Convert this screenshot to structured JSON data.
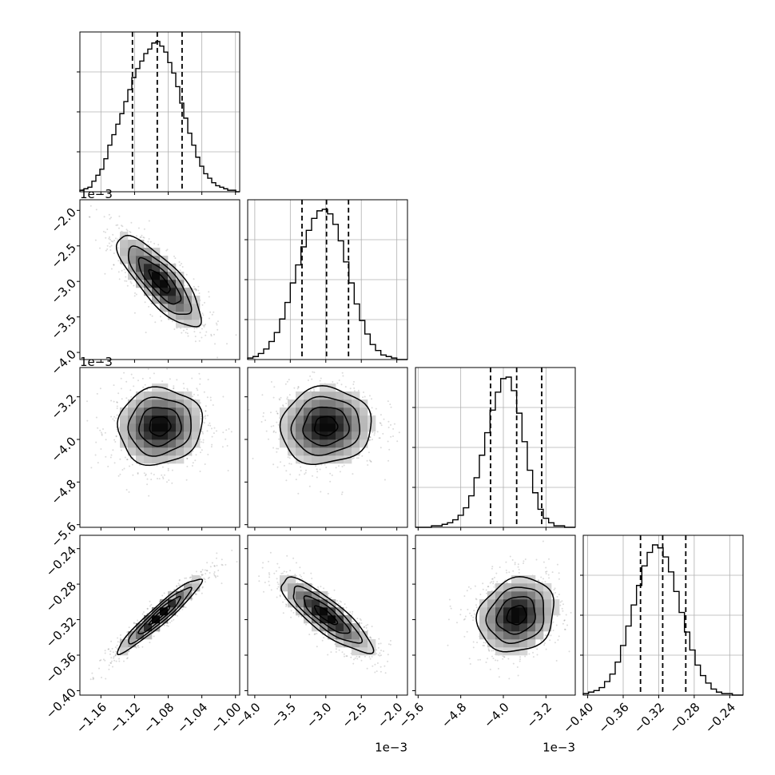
{
  "chart_data": {
    "type": "corner",
    "grid": true,
    "offset_label": "1e−3",
    "params": [
      {
        "range": [
          -1.185,
          -0.995
        ],
        "ticks": [
          -1.16,
          -1.12,
          -1.08,
          -1.04,
          -1.0
        ],
        "tick_labels": [
          "−1.16",
          "−1.12",
          "−1.08",
          "−1.04",
          "−1.00"
        ],
        "quantiles": [
          -1.1225,
          -1.093,
          -1.0635
        ],
        "mean": -1.09,
        "sd": 0.025
      },
      {
        "range": [
          -4.1,
          -1.85
        ],
        "ticks": [
          -4.0,
          -3.5,
          -3.0,
          -2.5,
          -2.0
        ],
        "tick_labels": [
          "−4.0",
          "−3.5",
          "−3.0",
          "−2.5",
          "−2.0"
        ],
        "quantiles": [
          -3.335,
          -2.99,
          -2.68
        ],
        "mean": -3.0,
        "sd": 0.32
      },
      {
        "range": [
          -5.65,
          -2.65
        ],
        "ticks": [
          -5.6,
          -4.8,
          -4.0,
          -3.2
        ],
        "tick_labels": [
          "−5.6",
          "−4.8",
          "−4.0",
          "−3.2"
        ],
        "quantiles": [
          -4.24,
          -3.75,
          -3.28
        ],
        "mean": -3.75,
        "sd": 0.36
      },
      {
        "range": [
          -0.405,
          -0.225
        ],
        "ticks": [
          -0.4,
          -0.36,
          -0.32,
          -0.28,
          -0.24
        ],
        "tick_labels": [
          "−0.40",
          "−0.36",
          "−0.32",
          "−0.28",
          "−0.24"
        ],
        "quantiles": [
          -0.3405,
          -0.3155,
          -0.2895
        ],
        "mean": -0.315,
        "sd": 0.021
      }
    ],
    "y_label_rows": [
      1,
      2,
      3
    ],
    "x_offset_cols": [
      1,
      2
    ],
    "y_offset_rows": [
      1,
      2
    ],
    "histograms": [
      [
        1,
        2,
        3,
        7,
        11,
        15,
        22,
        31,
        38,
        45,
        52,
        60,
        68,
        76,
        82,
        87,
        92,
        95,
        99,
        100,
        97,
        93,
        86,
        79,
        70,
        59,
        49,
        39,
        31,
        23,
        17,
        12,
        9,
        6,
        4,
        3,
        2,
        1,
        1,
        0
      ],
      [
        1,
        2,
        4,
        7,
        12,
        18,
        27,
        38,
        51,
        63,
        75,
        86,
        94,
        99,
        100,
        97,
        90,
        79,
        65,
        51,
        37,
        26,
        17,
        10,
        6,
        3,
        2,
        1,
        0,
        0
      ],
      [
        0,
        0,
        0,
        1,
        1,
        2,
        3,
        5,
        8,
        13,
        21,
        33,
        48,
        63,
        78,
        90,
        99,
        100,
        91,
        76,
        57,
        38,
        23,
        12,
        6,
        3,
        1,
        1,
        0,
        0
      ],
      [
        1,
        2,
        3,
        5,
        9,
        14,
        22,
        33,
        46,
        60,
        73,
        86,
        95,
        100,
        98,
        92,
        82,
        69,
        55,
        42,
        30,
        20,
        13,
        8,
        4,
        2,
        1,
        1,
        0,
        0
      ]
    ],
    "correlations": {
      "1,0": -0.8,
      "2,0": 0.05,
      "2,1": 0.05,
      "3,0": 0.95,
      "3,1": -0.85,
      "3,2": 0.15
    }
  }
}
